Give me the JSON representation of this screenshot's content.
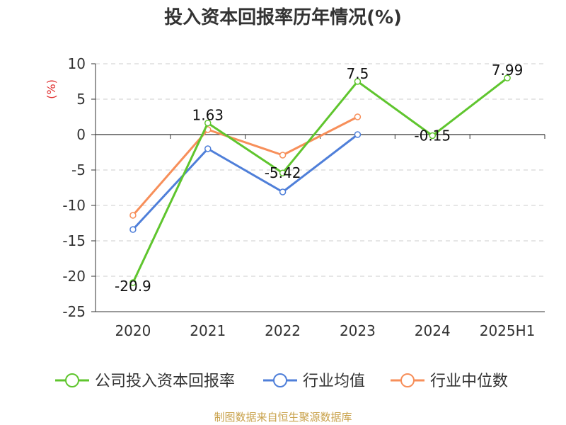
{
  "title": "投入资本回报率历年情况(%)",
  "source": "制图数据来自恒生聚源数据库",
  "colors": {
    "company": "#5fc52e",
    "industry_avg": "#4f7fd9",
    "industry_median": "#f78f5a",
    "unit": "#e03030"
  },
  "chart_data": {
    "type": "line",
    "ylabel": "(%)",
    "ylim": [
      -25,
      10
    ],
    "yticks": [
      10,
      5,
      0,
      -5,
      -10,
      -15,
      -20,
      -25
    ],
    "categories": [
      "2020",
      "2021",
      "2022",
      "2023",
      "2024",
      "2025H1"
    ],
    "grid": true,
    "legend_position": "bottom",
    "series": [
      {
        "key": "company",
        "name": "公司投入资本回报率",
        "values": [
          -20.9,
          1.63,
          -5.42,
          7.5,
          -0.15,
          7.99
        ],
        "labels": [
          "-20.9",
          "1.63",
          "-5.42",
          "7.5",
          "-0.15",
          "7.99"
        ]
      },
      {
        "key": "industry_avg",
        "name": "行业均值",
        "values": [
          -13.4,
          -2.0,
          -8.1,
          0.0,
          null,
          null
        ]
      },
      {
        "key": "industry_median",
        "name": "行业中位数",
        "values": [
          -11.4,
          0.7,
          -2.9,
          2.5,
          null,
          null
        ]
      }
    ]
  }
}
